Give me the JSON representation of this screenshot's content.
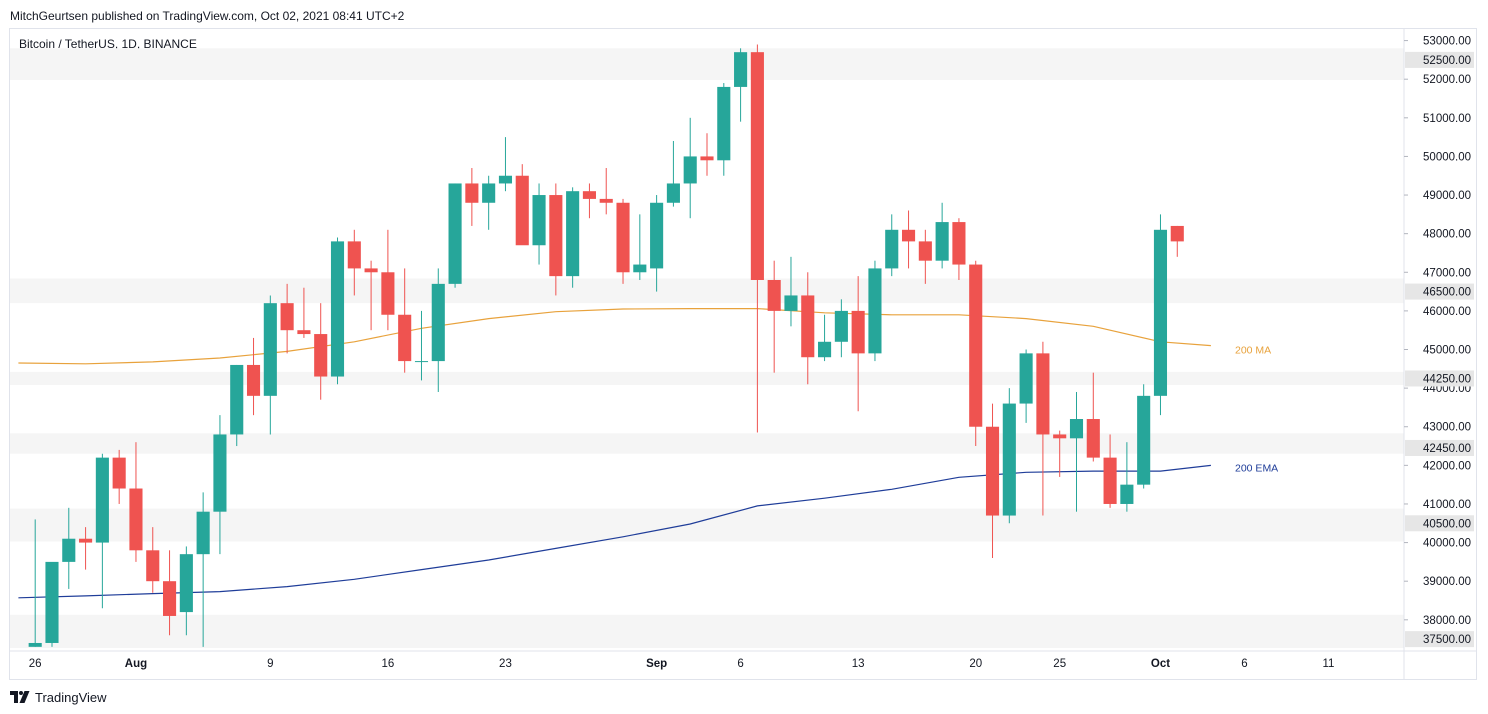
{
  "header": {
    "publisher": "MitchGeurtsen published on TradingView.com, Oct 02, 2021 08:41 UTC+2",
    "symbol": "Bitcoin / TetherUS, 1D, BINANCE"
  },
  "footer": {
    "brand": "TradingView"
  },
  "colors": {
    "up": "#26a69a",
    "down": "#ef5350",
    "ma": "#e8a23c",
    "ema": "#1f3d99",
    "zone": "#f5f5f5",
    "tag_bg": "#e6e6e6"
  },
  "chart_data": {
    "type": "candlestick",
    "symbol": "Bitcoin / TetherUS",
    "interval": "1D",
    "exchange": "BINANCE",
    "x_dates": [
      "2021-07-26",
      "2021-08-01",
      "2021-08-09",
      "2021-08-16",
      "2021-08-23",
      "2021-09-01",
      "2021-09-06",
      "2021-09-13",
      "2021-09-20",
      "2021-09-25",
      "2021-10-01",
      "2021-10-06",
      "2021-10-11"
    ],
    "x_tick_labels": [
      "26",
      "Aug",
      "9",
      "16",
      "23",
      "Sep",
      "6",
      "13",
      "20",
      "25",
      "Oct",
      "6",
      "11"
    ],
    "y_tick_labels": [
      "53000.00",
      "52000.00",
      "51000.00",
      "50000.00",
      "49000.00",
      "48000.00",
      "47000.00",
      "46000.00",
      "45000.00",
      "44000.00",
      "43000.00",
      "42000.00",
      "41000.00",
      "40000.00",
      "39000.00",
      "38000.00"
    ],
    "y_ticks": [
      53000,
      52000,
      51000,
      50000,
      49000,
      48000,
      47000,
      46000,
      45000,
      44000,
      43000,
      42000,
      41000,
      40000,
      39000,
      38000
    ],
    "ylim": [
      37270,
      53300
    ],
    "xlim": [
      "2021-07-25",
      "2021-10-16"
    ],
    "levels": [
      {
        "label": "52500.00",
        "value": 52500,
        "zone": [
          51980,
          52800
        ]
      },
      {
        "label": "46500.00",
        "value": 46500,
        "zone": [
          46200,
          46840
        ]
      },
      {
        "label": "44250.00",
        "value": 44250,
        "zone": [
          44080,
          44420
        ]
      },
      {
        "label": "42450.00",
        "value": 42450,
        "zone": [
          42300,
          42830
        ]
      },
      {
        "label": "40500.00",
        "value": 40500,
        "zone": [
          40030,
          40880
        ]
      },
      {
        "label": "37500.00",
        "value": 37500,
        "zone": [
          37270,
          38130
        ]
      }
    ],
    "series_labels": [
      {
        "name": "200 MA",
        "value": 45000
      },
      {
        "name": "200 EMA",
        "value": 41950
      }
    ],
    "candles": [
      {
        "date": "2021-07-26",
        "open": 37300,
        "high": 40600,
        "low": 37300,
        "close": 37400
      },
      {
        "date": "2021-07-27",
        "open": 37400,
        "high": 39400,
        "low": 37300,
        "close": 39500
      },
      {
        "date": "2021-07-28",
        "open": 39500,
        "high": 40900,
        "low": 38800,
        "close": 40100
      },
      {
        "date": "2021-07-29",
        "open": 40100,
        "high": 40400,
        "low": 39300,
        "close": 40000
      },
      {
        "date": "2021-07-30",
        "open": 40000,
        "high": 42300,
        "low": 38300,
        "close": 42200
      },
      {
        "date": "2021-07-31",
        "open": 42200,
        "high": 42400,
        "low": 41000,
        "close": 41400
      },
      {
        "date": "2021-08-01",
        "open": 41400,
        "high": 42600,
        "low": 39500,
        "close": 39800
      },
      {
        "date": "2021-08-02",
        "open": 39800,
        "high": 40400,
        "low": 38700,
        "close": 39000
      },
      {
        "date": "2021-08-03",
        "open": 39000,
        "high": 39800,
        "low": 37600,
        "close": 38100
      },
      {
        "date": "2021-08-04",
        "open": 38200,
        "high": 39900,
        "low": 37600,
        "close": 39700
      },
      {
        "date": "2021-08-05",
        "open": 39700,
        "high": 41300,
        "low": 37300,
        "close": 40800
      },
      {
        "date": "2021-08-06",
        "open": 40800,
        "high": 43300,
        "low": 39700,
        "close": 42800
      },
      {
        "date": "2021-08-07",
        "open": 42800,
        "high": 44600,
        "low": 42500,
        "close": 44600
      },
      {
        "date": "2021-08-08",
        "open": 44600,
        "high": 45300,
        "low": 43300,
        "close": 43800
      },
      {
        "date": "2021-08-09",
        "open": 43800,
        "high": 46400,
        "low": 42800,
        "close": 46200
      },
      {
        "date": "2021-08-10",
        "open": 46200,
        "high": 46700,
        "low": 44900,
        "close": 45500
      },
      {
        "date": "2021-08-11",
        "open": 45500,
        "high": 46600,
        "low": 45300,
        "close": 45400
      },
      {
        "date": "2021-08-12",
        "open": 45400,
        "high": 46200,
        "low": 43700,
        "close": 44300
      },
      {
        "date": "2021-08-13",
        "open": 44300,
        "high": 47900,
        "low": 44100,
        "close": 47800
      },
      {
        "date": "2021-08-14",
        "open": 47800,
        "high": 48100,
        "low": 46400,
        "close": 47100
      },
      {
        "date": "2021-08-15",
        "open": 47100,
        "high": 47300,
        "low": 45500,
        "close": 47000
      },
      {
        "date": "2021-08-16",
        "open": 47000,
        "high": 48100,
        "low": 45500,
        "close": 45900
      },
      {
        "date": "2021-08-17",
        "open": 45900,
        "high": 47100,
        "low": 44400,
        "close": 44700
      },
      {
        "date": "2021-08-18",
        "open": 44700,
        "high": 46000,
        "low": 44200,
        "close": 44700
      },
      {
        "date": "2021-08-19",
        "open": 44700,
        "high": 47100,
        "low": 43900,
        "close": 46700
      },
      {
        "date": "2021-08-20",
        "open": 46700,
        "high": 49300,
        "low": 46600,
        "close": 49300
      },
      {
        "date": "2021-08-21",
        "open": 49300,
        "high": 49700,
        "low": 48200,
        "close": 48800
      },
      {
        "date": "2021-08-22",
        "open": 48800,
        "high": 49500,
        "low": 48100,
        "close": 49300
      },
      {
        "date": "2021-08-23",
        "open": 49300,
        "high": 50500,
        "low": 49100,
        "close": 49500
      },
      {
        "date": "2021-08-24",
        "open": 49500,
        "high": 49800,
        "low": 47800,
        "close": 47700
      },
      {
        "date": "2021-08-25",
        "open": 47700,
        "high": 49300,
        "low": 47200,
        "close": 49000
      },
      {
        "date": "2021-08-26",
        "open": 49000,
        "high": 49300,
        "low": 46400,
        "close": 46900
      },
      {
        "date": "2021-08-27",
        "open": 46900,
        "high": 49200,
        "low": 46600,
        "close": 49100
      },
      {
        "date": "2021-08-28",
        "open": 49100,
        "high": 49300,
        "low": 48400,
        "close": 48900
      },
      {
        "date": "2021-08-29",
        "open": 48900,
        "high": 49700,
        "low": 48500,
        "close": 48800
      },
      {
        "date": "2021-08-30",
        "open": 48800,
        "high": 48900,
        "low": 46700,
        "close": 47000
      },
      {
        "date": "2021-08-31",
        "open": 47000,
        "high": 48500,
        "low": 46800,
        "close": 47200
      },
      {
        "date": "2021-09-01",
        "open": 47100,
        "high": 49000,
        "low": 46500,
        "close": 48800
      },
      {
        "date": "2021-09-02",
        "open": 48800,
        "high": 50400,
        "low": 48700,
        "close": 49300
      },
      {
        "date": "2021-09-03",
        "open": 49300,
        "high": 51000,
        "low": 48400,
        "close": 50000
      },
      {
        "date": "2021-09-04",
        "open": 50000,
        "high": 50600,
        "low": 49500,
        "close": 49900
      },
      {
        "date": "2021-09-05",
        "open": 49900,
        "high": 51900,
        "low": 49500,
        "close": 51800
      },
      {
        "date": "2021-09-06",
        "open": 51800,
        "high": 52800,
        "low": 50900,
        "close": 52700
      },
      {
        "date": "2021-09-07",
        "open": 52700,
        "high": 52900,
        "low": 42850,
        "close": 46800
      },
      {
        "date": "2021-09-08",
        "open": 46800,
        "high": 47300,
        "low": 44400,
        "close": 46000
      },
      {
        "date": "2021-09-09",
        "open": 46000,
        "high": 47400,
        "low": 45600,
        "close": 46400
      },
      {
        "date": "2021-09-10",
        "open": 46400,
        "high": 47000,
        "low": 44100,
        "close": 44800
      },
      {
        "date": "2021-09-11",
        "open": 44800,
        "high": 45900,
        "low": 44700,
        "close": 45200
      },
      {
        "date": "2021-09-12",
        "open": 45200,
        "high": 46300,
        "low": 44800,
        "close": 46000
      },
      {
        "date": "2021-09-13",
        "open": 46000,
        "high": 46900,
        "low": 43400,
        "close": 44900
      },
      {
        "date": "2021-09-14",
        "open": 44900,
        "high": 47300,
        "low": 44700,
        "close": 47100
      },
      {
        "date": "2021-09-15",
        "open": 47100,
        "high": 48500,
        "low": 46900,
        "close": 48100
      },
      {
        "date": "2021-09-16",
        "open": 48100,
        "high": 48600,
        "low": 47100,
        "close": 47800
      },
      {
        "date": "2021-09-17",
        "open": 47800,
        "high": 48100,
        "low": 46700,
        "close": 47300
      },
      {
        "date": "2021-09-18",
        "open": 47300,
        "high": 48800,
        "low": 47100,
        "close": 48300
      },
      {
        "date": "2021-09-19",
        "open": 48300,
        "high": 48400,
        "low": 46800,
        "close": 47200
      },
      {
        "date": "2021-09-20",
        "open": 47200,
        "high": 47300,
        "low": 42500,
        "close": 43000
      },
      {
        "date": "2021-09-21",
        "open": 43000,
        "high": 43600,
        "low": 39600,
        "close": 40700
      },
      {
        "date": "2021-09-22",
        "open": 40700,
        "high": 44000,
        "low": 40500,
        "close": 43600
      },
      {
        "date": "2021-09-23",
        "open": 43600,
        "high": 45000,
        "low": 43100,
        "close": 44900
      },
      {
        "date": "2021-09-24",
        "open": 44900,
        "high": 45200,
        "low": 40700,
        "close": 42800
      },
      {
        "date": "2021-09-25",
        "open": 42800,
        "high": 42900,
        "low": 41700,
        "close": 42700
      },
      {
        "date": "2021-09-26",
        "open": 42700,
        "high": 43900,
        "low": 40800,
        "close": 43200
      },
      {
        "date": "2021-09-27",
        "open": 43200,
        "high": 44400,
        "low": 42100,
        "close": 42200
      },
      {
        "date": "2021-09-28",
        "open": 42200,
        "high": 42800,
        "low": 40900,
        "close": 41000
      },
      {
        "date": "2021-09-29",
        "open": 41000,
        "high": 42600,
        "low": 40800,
        "close": 41500
      },
      {
        "date": "2021-09-30",
        "open": 41500,
        "high": 44100,
        "low": 41400,
        "close": 43800
      },
      {
        "date": "2021-10-01",
        "open": 43800,
        "high": 48500,
        "low": 43300,
        "close": 48100
      },
      {
        "date": "2021-10-02",
        "open": 48200,
        "high": 48200,
        "low": 47400,
        "close": 47800
      }
    ],
    "ma200": [
      {
        "date": "2021-07-25",
        "value": 44650
      },
      {
        "date": "2021-07-29",
        "value": 44630
      },
      {
        "date": "2021-08-02",
        "value": 44680
      },
      {
        "date": "2021-08-06",
        "value": 44780
      },
      {
        "date": "2021-08-10",
        "value": 44950
      },
      {
        "date": "2021-08-14",
        "value": 45200
      },
      {
        "date": "2021-08-18",
        "value": 45550
      },
      {
        "date": "2021-08-22",
        "value": 45800
      },
      {
        "date": "2021-08-26",
        "value": 45980
      },
      {
        "date": "2021-08-30",
        "value": 46050
      },
      {
        "date": "2021-09-03",
        "value": 46060
      },
      {
        "date": "2021-09-07",
        "value": 46060
      },
      {
        "date": "2021-09-11",
        "value": 45950
      },
      {
        "date": "2021-09-15",
        "value": 45900
      },
      {
        "date": "2021-09-19",
        "value": 45900
      },
      {
        "date": "2021-09-23",
        "value": 45800
      },
      {
        "date": "2021-09-27",
        "value": 45600
      },
      {
        "date": "2021-10-01",
        "value": 45200
      },
      {
        "date": "2021-10-04",
        "value": 45100
      }
    ],
    "ema200": [
      {
        "date": "2021-07-25",
        "value": 38570
      },
      {
        "date": "2021-07-29",
        "value": 38620
      },
      {
        "date": "2021-08-02",
        "value": 38680
      },
      {
        "date": "2021-08-06",
        "value": 38730
      },
      {
        "date": "2021-08-10",
        "value": 38860
      },
      {
        "date": "2021-08-14",
        "value": 39050
      },
      {
        "date": "2021-08-18",
        "value": 39300
      },
      {
        "date": "2021-08-22",
        "value": 39550
      },
      {
        "date": "2021-08-26",
        "value": 39850
      },
      {
        "date": "2021-08-30",
        "value": 40150
      },
      {
        "date": "2021-09-03",
        "value": 40480
      },
      {
        "date": "2021-09-07",
        "value": 40950
      },
      {
        "date": "2021-09-11",
        "value": 41150
      },
      {
        "date": "2021-09-15",
        "value": 41380
      },
      {
        "date": "2021-09-19",
        "value": 41690
      },
      {
        "date": "2021-09-23",
        "value": 41820
      },
      {
        "date": "2021-09-27",
        "value": 41850
      },
      {
        "date": "2021-10-01",
        "value": 41850
      },
      {
        "date": "2021-10-04",
        "value": 42000
      }
    ],
    "grid": false
  }
}
